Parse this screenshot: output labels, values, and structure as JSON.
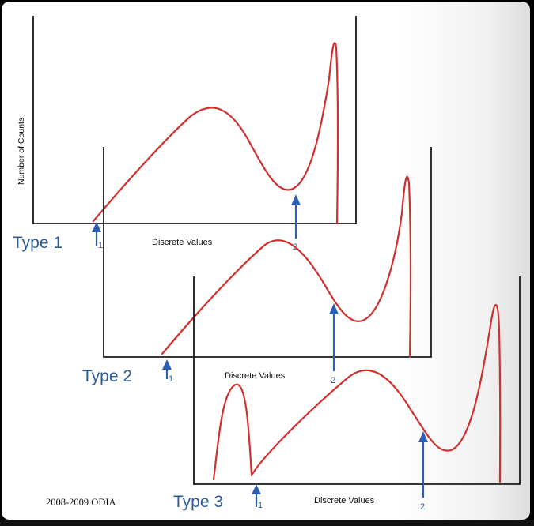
{
  "diagram": {
    "y_axis_label": "Number of Counts",
    "x_axis_label": "Discrete Values",
    "footer_credit": "2008-2009 ODIA",
    "colors": {
      "curve": "#d0312f",
      "marker": "#2b5fb4",
      "type_label": "#2d5d99",
      "axis": "#1a1a1a"
    },
    "panels": [
      {
        "type_label": "Type 1",
        "markers": [
          "1",
          "2"
        ]
      },
      {
        "type_label": "Type 2",
        "markers": [
          "1",
          "2"
        ]
      },
      {
        "type_label": "Type 3",
        "markers": [
          "1",
          "2"
        ]
      }
    ]
  }
}
